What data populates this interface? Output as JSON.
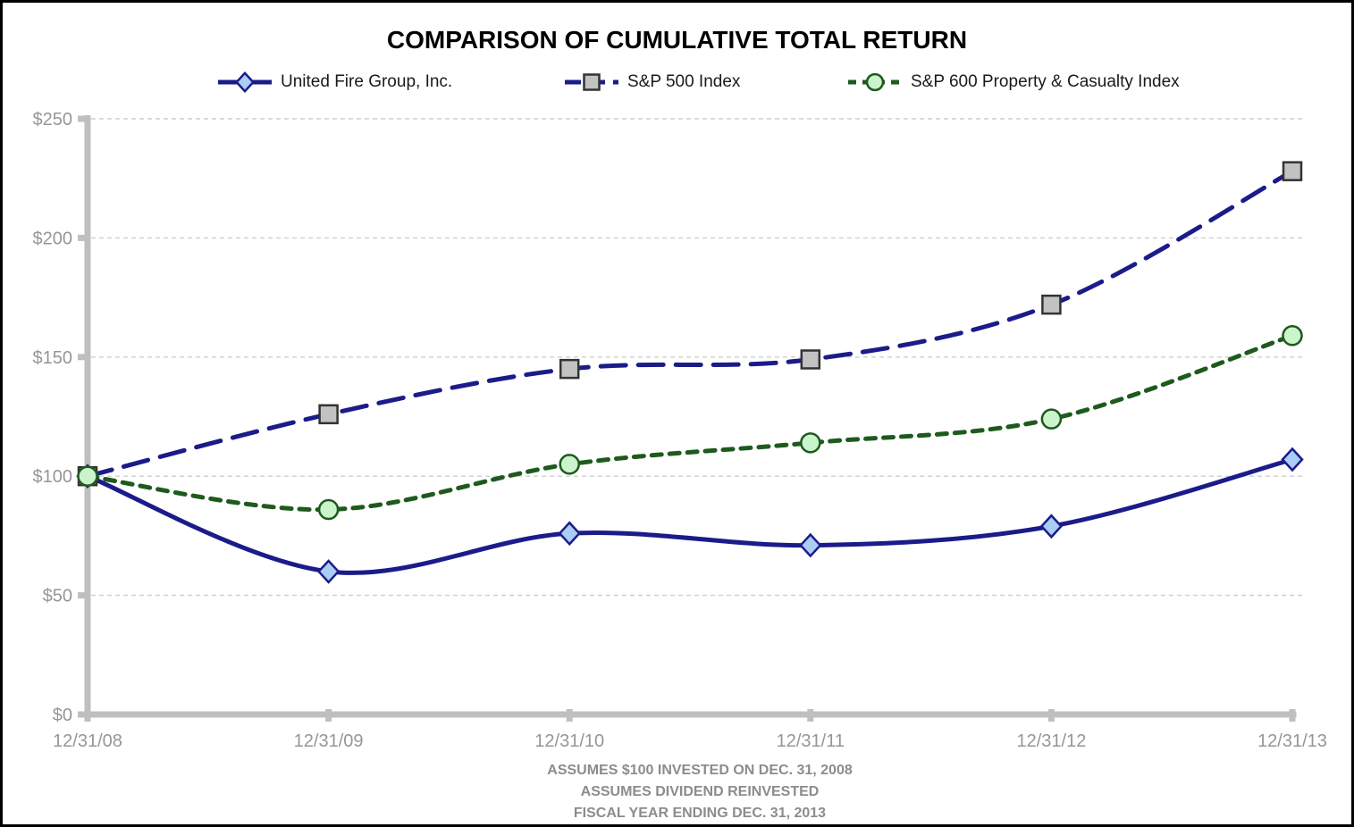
{
  "chart_data": {
    "type": "line",
    "title": "COMPARISON OF CUMULATIVE TOTAL RETURN",
    "categories": [
      "12/31/08",
      "12/31/09",
      "12/31/10",
      "12/31/11",
      "12/31/12",
      "12/31/13"
    ],
    "series": [
      {
        "name": "United Fire Group, Inc.",
        "values": [
          100,
          60,
          76,
          71,
          79,
          107
        ],
        "color": "#1B1B8A",
        "line_style": "solid",
        "marker": "diamond",
        "marker_fill": "#A9CDF5",
        "marker_stroke": "#1B1B8A"
      },
      {
        "name": "S&P 500 Index",
        "values": [
          100,
          126,
          145,
          149,
          172,
          228
        ],
        "color": "#1B1B8A",
        "line_style": "long-dash",
        "marker": "square",
        "marker_fill": "#C2C2C2",
        "marker_stroke": "#333333"
      },
      {
        "name": "S&P 600 Property & Casualty Index",
        "values": [
          100,
          86,
          105,
          114,
          124,
          159
        ],
        "color": "#1E5A1E",
        "line_style": "short-dash",
        "marker": "circle",
        "marker_fill": "#CCF4CC",
        "marker_stroke": "#1E5A1E"
      }
    ],
    "ylim": [
      0,
      250
    ],
    "yticks": [
      {
        "value": 0,
        "label": "$0"
      },
      {
        "value": 50,
        "label": "$50"
      },
      {
        "value": 100,
        "label": "$100"
      },
      {
        "value": 150,
        "label": "$150"
      },
      {
        "value": 200,
        "label": "$200"
      },
      {
        "value": 250,
        "label": "$250"
      }
    ],
    "xlabel": "",
    "ylabel": "",
    "grid": "horizontal-dashed",
    "legend_position": "top",
    "footnotes": [
      "ASSUMES $100 INVESTED ON DEC. 31, 2008",
      "ASSUMES DIVIDEND REINVESTED",
      "FISCAL YEAR ENDING DEC. 31, 2013"
    ],
    "colors": {
      "axis": "#BFBFBF",
      "gridline": "#CFCFCF",
      "tick_text": "#969696",
      "footnote_text": "#8C8C8C",
      "title_text": "#000000",
      "legend_text": "#1A1A1A"
    }
  }
}
